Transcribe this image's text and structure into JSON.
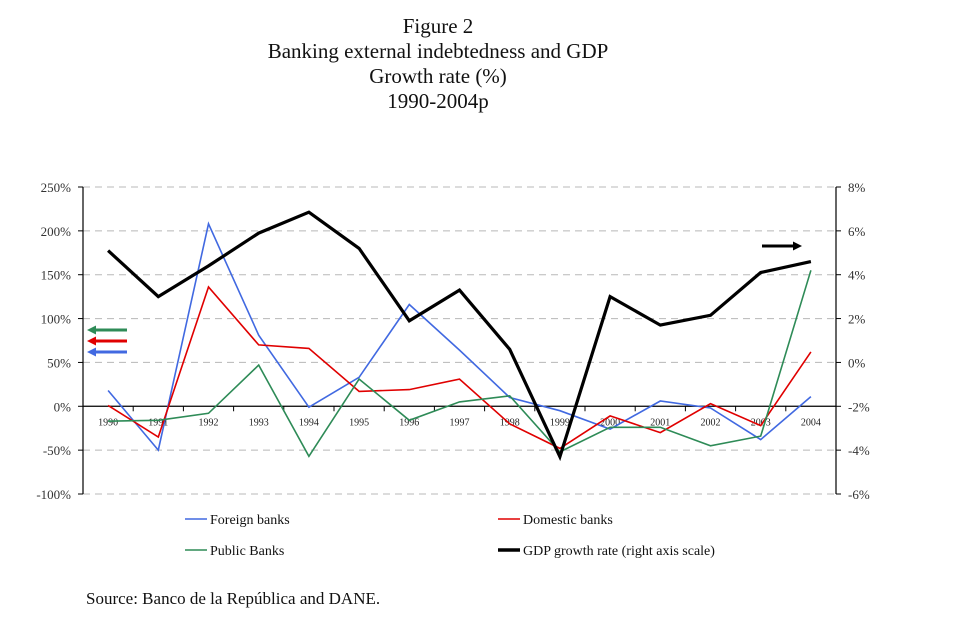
{
  "chart_data": {
    "type": "line",
    "title": "Figure 2",
    "subtitle_lines": [
      "Banking external indebtedness and GDP",
      "Growth rate (%)",
      "1990-2004p"
    ],
    "categories": [
      "1990",
      "1991",
      "1992",
      "1993",
      "1994",
      "1995",
      "1996",
      "1997",
      "1998",
      "1999",
      "2000",
      "2001",
      "2002",
      "2003",
      "2004"
    ],
    "left_axis": {
      "label": "",
      "ylim": [
        -100,
        250
      ],
      "ticks": [
        250,
        200,
        150,
        100,
        50,
        0,
        -50,
        -100
      ],
      "tick_labels": [
        "250%",
        "200%",
        "150%",
        "100%",
        "50%",
        "0%",
        "-50%",
        "-100%"
      ]
    },
    "right_axis": {
      "label": "",
      "ylim": [
        -6,
        8
      ],
      "ticks": [
        8,
        6,
        4,
        2,
        0,
        -2,
        -4,
        -6
      ],
      "tick_labels": [
        "8%",
        "6%",
        "4%",
        "2%",
        "0%",
        "-2%",
        "-4%",
        "-6%"
      ]
    },
    "grid": true,
    "series": [
      {
        "name": "Foreign banks",
        "axis": "left",
        "color": "#4169e1",
        "values": [
          18,
          -50,
          208,
          81,
          -1,
          33,
          116,
          64,
          10,
          -5,
          -26,
          6,
          -2,
          -38,
          11
        ]
      },
      {
        "name": "Domestic banks",
        "axis": "left",
        "color": "#e00000",
        "values": [
          1,
          -35,
          136,
          70,
          66,
          17,
          19,
          31,
          -20,
          -48,
          -11,
          -30,
          3,
          -22,
          62
        ]
      },
      {
        "name": "Public Banks",
        "axis": "left",
        "color": "#2e8b57",
        "values": [
          -17,
          -16,
          -8,
          47,
          -57,
          31,
          -16,
          5,
          12,
          -52,
          -24,
          -24,
          -45,
          -34,
          155
        ]
      },
      {
        "name": "GDP growth rate (right axis scale)",
        "axis": "right",
        "color": "#000000",
        "values": [
          5.1,
          3.0,
          4.4,
          5.9,
          6.85,
          5.2,
          1.9,
          3.3,
          0.6,
          -4.3,
          3.0,
          1.7,
          2.15,
          4.1,
          4.6
        ]
      }
    ],
    "legend_position": "bottom",
    "annotations": [
      {
        "type": "arrow",
        "direction": "left",
        "color": "#2e8b57",
        "meaning": "Public Banks on left axis"
      },
      {
        "type": "arrow",
        "direction": "left",
        "color": "#e00000",
        "meaning": "Domestic banks on left axis"
      },
      {
        "type": "arrow",
        "direction": "left",
        "color": "#4169e1",
        "meaning": "Foreign banks on left axis"
      },
      {
        "type": "arrow",
        "direction": "right",
        "color": "#000000",
        "meaning": "GDP growth rate on right axis"
      }
    ]
  },
  "source": "Source: Banco de la República and DANE."
}
